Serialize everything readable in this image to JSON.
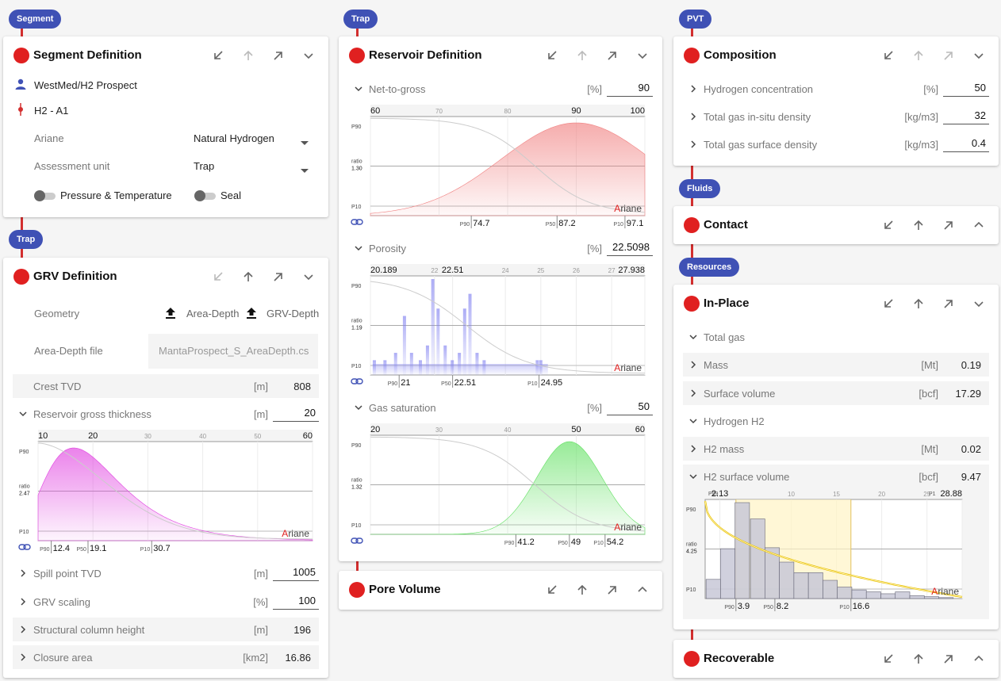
{
  "tags": {
    "segment": "Segment",
    "trap1": "Trap",
    "trap2": "Trap",
    "pvt": "PVT",
    "fluids": "Fluids",
    "resources": "Resources"
  },
  "segment": {
    "title": "Segment Definition",
    "user": "WestMed/H2 Prospect",
    "well": "H2 - A1",
    "ariane_label": "Ariane",
    "ariane_value": "Natural Hydrogen",
    "assessment_label": "Assessment unit",
    "assessment_value": "Trap",
    "toggle1": "Pressure & Temperature",
    "toggle2": "Seal"
  },
  "grv": {
    "title": "GRV Definition",
    "geometry_label": "Geometry",
    "upload1": "Area-Depth",
    "upload2": "GRV-Depth",
    "file_label": "Area-Depth file",
    "file_value": "MantaProspect_S_AreaDepth.cs",
    "crest_label": "Crest TVD",
    "crest_unit": "[m]",
    "crest_value": "808",
    "thickness_label": "Reservoir gross thickness",
    "thickness_unit": "[m]",
    "thickness_value": "20",
    "spill_label": "Spill point TVD",
    "spill_unit": "[m]",
    "spill_value": "1005",
    "scaling_label": "GRV scaling",
    "scaling_unit": "[%]",
    "scaling_value": "100",
    "column_label": "Structural column height",
    "column_unit": "[m]",
    "column_value": "196",
    "closure_label": "Closure area",
    "closure_unit": "[km2]",
    "closure_value": "16.86"
  },
  "reservoir": {
    "title": "Reservoir Definition",
    "ntg_label": "Net-to-gross",
    "ntg_unit": "[%]",
    "ntg_value": "90",
    "por_label": "Porosity",
    "por_unit": "[%]",
    "por_value": "22.5098",
    "sg_label": "Gas saturation",
    "sg_unit": "[%]",
    "sg_value": "50"
  },
  "pore": {
    "title": "Pore Volume"
  },
  "composition": {
    "title": "Composition",
    "h2_label": "Hydrogen concentration",
    "h2_unit": "[%]",
    "h2_value": "50",
    "dens_label": "Total gas in-situ density",
    "dens_unit": "[kg/m3]",
    "dens_value": "32",
    "surf_label": "Total gas surface density",
    "surf_unit": "[kg/m3]",
    "surf_value": "0.4"
  },
  "contact": {
    "title": "Contact"
  },
  "inplace": {
    "title": "In-Place",
    "total_gas": "Total gas",
    "mass_label": "Mass",
    "mass_unit": "[Mt]",
    "mass_value": "0.19",
    "sv_label": "Surface volume",
    "sv_unit": "[bcf]",
    "sv_value": "17.29",
    "hydrogen": "Hydrogen H2",
    "h2m_label": "H2 mass",
    "h2m_unit": "[Mt]",
    "h2m_value": "0.02",
    "h2sv_label": "H2 surface volume",
    "h2sv_unit": "[bcf]",
    "h2sv_value": "9.47"
  },
  "recoverable": {
    "title": "Recoverable"
  },
  "chart_common": {
    "p90": "P90",
    "p10": "P10",
    "p50": "P50",
    "ratio": "ratio",
    "brand_a": "A",
    "brand_rest": "riane"
  },
  "chart_data": [
    {
      "id": "thickness",
      "type": "area",
      "color": "#e040e0",
      "xlim": [
        10,
        60
      ],
      "ticks": [
        {
          "v": 10,
          "l": "10",
          "big": true
        },
        {
          "v": 20,
          "l": "20",
          "big": true
        },
        {
          "v": 30,
          "l": "30"
        },
        {
          "v": 40,
          "l": "40"
        },
        {
          "v": 50,
          "l": "50"
        },
        {
          "v": 60,
          "l": "60",
          "big": true
        }
      ],
      "ratio": "2.47",
      "p90": "12.4",
      "p50": "19.1",
      "p10": "30.7",
      "pdf": {
        "kind": "lognormal",
        "mode": 16.5,
        "sigma": 0.42
      }
    },
    {
      "id": "ntg",
      "type": "area",
      "color": "#f08080",
      "xlim": [
        60,
        100
      ],
      "ticks": [
        {
          "v": 60,
          "l": "60",
          "big": true
        },
        {
          "v": 70,
          "l": "70"
        },
        {
          "v": 80,
          "l": "80"
        },
        {
          "v": 90,
          "l": "90",
          "big": true
        },
        {
          "v": 100,
          "l": "100",
          "big": true
        }
      ],
      "ratio": "1.30",
      "p90": "74.7",
      "p50": "87.2",
      "p10": "97.1",
      "pdf": {
        "kind": "normal",
        "mode": 90,
        "sigma": 11
      }
    },
    {
      "id": "porosity",
      "type": "histogram",
      "color": "#8080f0",
      "xlim": [
        20.189,
        27.938
      ],
      "ticks": [
        {
          "v": 20.189,
          "l": "20.189",
          "big": true
        },
        {
          "v": 22,
          "l": "22"
        },
        {
          "v": 22.51,
          "l": "22.51",
          "big": true
        },
        {
          "v": 24,
          "l": "24"
        },
        {
          "v": 25,
          "l": "25"
        },
        {
          "v": 26,
          "l": "26"
        },
        {
          "v": 27,
          "l": "27"
        },
        {
          "v": 27.938,
          "l": "27.938",
          "big": true
        }
      ],
      "ratio": "1.19",
      "p90": "21",
      "p50": "22.51",
      "p10": "24.95",
      "bars": [
        [
          20.3,
          2
        ],
        [
          20.6,
          2
        ],
        [
          20.9,
          3
        ],
        [
          21.15,
          8
        ],
        [
          21.35,
          3
        ],
        [
          21.6,
          2
        ],
        [
          21.8,
          4
        ],
        [
          21.95,
          13
        ],
        [
          22.1,
          9
        ],
        [
          22.3,
          4
        ],
        [
          22.5,
          2
        ],
        [
          22.7,
          3
        ],
        [
          22.85,
          9
        ],
        [
          23.0,
          11
        ],
        [
          23.2,
          3
        ],
        [
          23.4,
          2
        ],
        [
          24.9,
          2
        ],
        [
          25.0,
          2
        ]
      ]
    },
    {
      "id": "sg",
      "type": "area",
      "color": "#60e060",
      "xlim": [
        20,
        60
      ],
      "ticks": [
        {
          "v": 20,
          "l": "20",
          "big": true
        },
        {
          "v": 30,
          "l": "30"
        },
        {
          "v": 40,
          "l": "40"
        },
        {
          "v": 50,
          "l": "50",
          "big": true
        },
        {
          "v": 60,
          "l": "60",
          "big": true
        }
      ],
      "ratio": "1.32",
      "p90": "41.2",
      "p50": "49",
      "p10": "54.2",
      "pdf": {
        "kind": "normal",
        "mode": 49,
        "sigma": 4.8
      }
    },
    {
      "id": "h2sv",
      "type": "histogram",
      "color": "#c8c8d0",
      "xlim": [
        0.5,
        28.88
      ],
      "ticks": [
        {
          "v": 2.13,
          "l": "2.13",
          "big": true
        },
        {
          "v": 10,
          "l": "10"
        },
        {
          "v": 15,
          "l": "15"
        },
        {
          "v": 20,
          "l": "20"
        },
        {
          "v": 25,
          "l": "25"
        },
        {
          "v": 28.88,
          "l": "28.88",
          "big": true
        }
      ],
      "labels": {
        "p99": "P99",
        "p1": "P1"
      },
      "ratio": "4.25",
      "p90": "3.9",
      "p50": "8.2",
      "p10": "16.6",
      "bars": [
        [
          1.4,
          20
        ],
        [
          3.0,
          52
        ],
        [
          4.6,
          100
        ],
        [
          6.3,
          83
        ],
        [
          7.9,
          53
        ],
        [
          9.5,
          38
        ],
        [
          11.1,
          27
        ],
        [
          12.7,
          27
        ],
        [
          14.3,
          19
        ],
        [
          15.9,
          12
        ],
        [
          17.5,
          9
        ],
        [
          19.1,
          7
        ],
        [
          20.7,
          5
        ],
        [
          22.3,
          7
        ],
        [
          23.9,
          3
        ],
        [
          25.5,
          2
        ],
        [
          27.1,
          1
        ]
      ]
    }
  ]
}
